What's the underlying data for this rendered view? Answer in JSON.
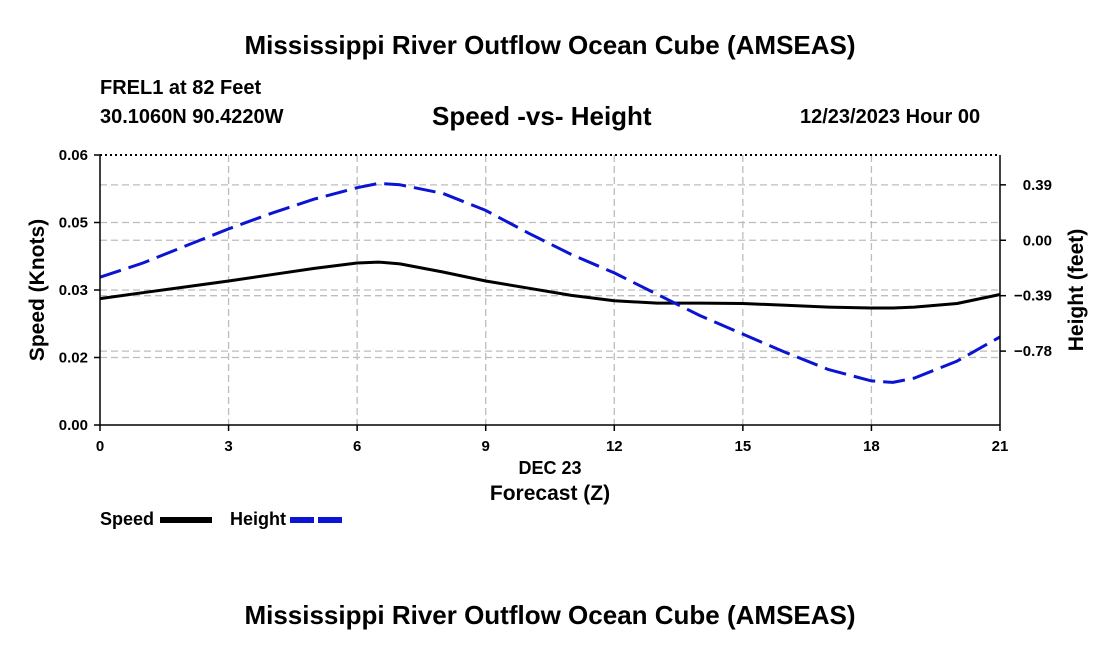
{
  "header": {
    "title": "Mississippi River Outflow Ocean Cube (AMSEAS)",
    "station": "FREL1 at 82 Feet",
    "coords": "30.1060N  90.4220W",
    "subtitle": "Speed -vs- Height",
    "datetime": "12/23/2023 Hour 00"
  },
  "footer": {
    "title": "Mississippi River Outflow Ocean Cube (AMSEAS)"
  },
  "colors": {
    "speed": "#000000",
    "height": "#0a14d2",
    "grid": "#bdbdbd"
  },
  "chart_data": {
    "type": "line",
    "title": "Speed -vs- Height",
    "xlabel": "Forecast (Z)",
    "xsublabel": "DEC 23",
    "ylabel": "Speed (Knots)",
    "y2label": "Height (feet)",
    "xlim": [
      0,
      21
    ],
    "ylim": [
      0,
      0.06
    ],
    "y2lim": [
      -1.3,
      0.6
    ],
    "x_ticks": [
      0,
      3,
      6,
      9,
      12,
      15,
      18,
      21
    ],
    "x_tick_labels": [
      "0",
      "3",
      "6",
      "9",
      "12",
      "15",
      "18",
      "21"
    ],
    "y_ticks": [
      0,
      0.015,
      0.03,
      0.045,
      0.06
    ],
    "y_tick_labels": [
      "0.00",
      "0.02",
      "0.03",
      "0.05",
      "0.06"
    ],
    "y2_ticks": [
      -0.78,
      -0.39,
      0.0,
      0.39
    ],
    "y2_tick_labels": [
      "-0.78",
      "-0.39",
      "0.00",
      "0.39"
    ],
    "series": [
      {
        "name": "Speed",
        "axis": "left",
        "style": "solid",
        "x": [
          0,
          1,
          2,
          3,
          4,
          5,
          6,
          6.5,
          7,
          8,
          9,
          10,
          11,
          12,
          13,
          14,
          15,
          16,
          17,
          18,
          18.5,
          19,
          20,
          21
        ],
        "values": [
          0.0281,
          0.0294,
          0.0307,
          0.032,
          0.0334,
          0.0348,
          0.036,
          0.0362,
          0.0358,
          0.034,
          0.032,
          0.0304,
          0.0288,
          0.0276,
          0.0271,
          0.0271,
          0.027,
          0.0266,
          0.0262,
          0.026,
          0.026,
          0.0262,
          0.027,
          0.029
        ]
      },
      {
        "name": "Height",
        "axis": "right",
        "style": "dashed",
        "x": [
          0,
          1,
          2,
          3,
          4,
          5,
          6,
          6.5,
          7,
          8,
          9,
          10,
          11,
          12,
          13,
          14,
          15,
          16,
          17,
          18,
          18.5,
          19,
          20,
          21
        ],
        "values": [
          -0.26,
          -0.16,
          -0.04,
          0.08,
          0.19,
          0.29,
          0.37,
          0.4,
          0.39,
          0.33,
          0.21,
          0.05,
          -0.1,
          -0.23,
          -0.38,
          -0.53,
          -0.66,
          -0.79,
          -0.91,
          -0.99,
          -1.0,
          -0.97,
          -0.85,
          -0.68
        ]
      }
    ],
    "legend": [
      {
        "label": "Speed",
        "style": "solid"
      },
      {
        "label": "Height",
        "style": "dashed"
      }
    ]
  }
}
